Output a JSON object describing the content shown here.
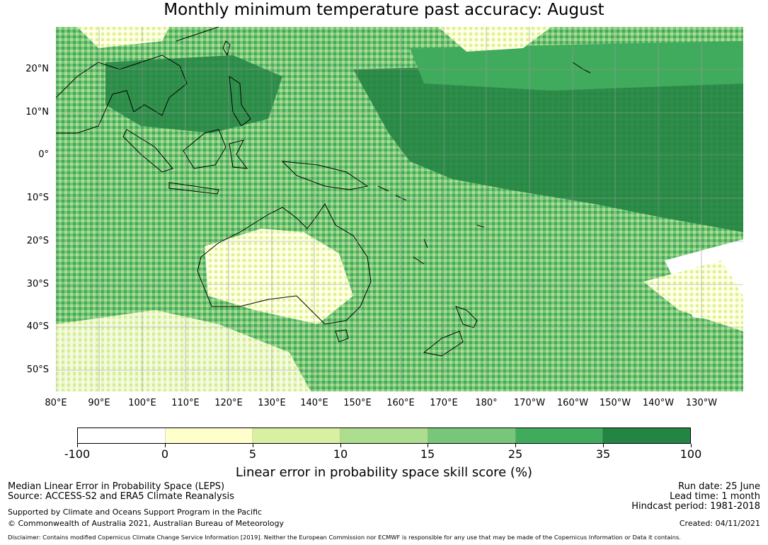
{
  "title": "Monthly minimum temperature past accuracy: August",
  "map": {
    "lat_labels": [
      "20°N",
      "10°N",
      "0°",
      "10°S",
      "20°S",
      "30°S",
      "40°S",
      "50°S"
    ],
    "lon_labels": [
      "80°E",
      "90°E",
      "100°E",
      "110°E",
      "120°E",
      "130°E",
      "140°E",
      "150°E",
      "160°E",
      "170°E",
      "180°",
      "170°W",
      "160°W",
      "150°W",
      "140°W",
      "130°W"
    ],
    "grid_color": "#999999",
    "coastline_color": "#000000"
  },
  "colorbar": {
    "label": "Linear error in probability space skill score (%)",
    "ticks": [
      "-100",
      "0",
      "5",
      "10",
      "15",
      "25",
      "35",
      "100"
    ],
    "colors": [
      "#ffffff",
      "#ffffcc",
      "#d9f0a3",
      "#addd8e",
      "#78c679",
      "#41ab5d",
      "#238443"
    ]
  },
  "footer": {
    "left": {
      "line1": "Median Linear Error in Probability Space (LEPS)",
      "line2": "Source: ACCESS-S2 and ERA5 Climate Reanalysis",
      "line3": "Supported by Climate and Oceans Support Program in the Pacific",
      "line4": "© Commonwealth of Australia 2021, Australian Bureau of Meteorology"
    },
    "right": {
      "run_date": "Run date: 25 June",
      "lead_time": "Lead time: 1 month",
      "hindcast": "Hindcast period: 1981-2018",
      "created": "Created: 04/11/2021"
    },
    "disclaimer": "Disclaimer: Contains modified Copernicus Climate Change Service Information [2019]. Neither the European Commission nor ECMWF is responsible for any use that may be made of the Copernicus Information or Data it contains."
  }
}
